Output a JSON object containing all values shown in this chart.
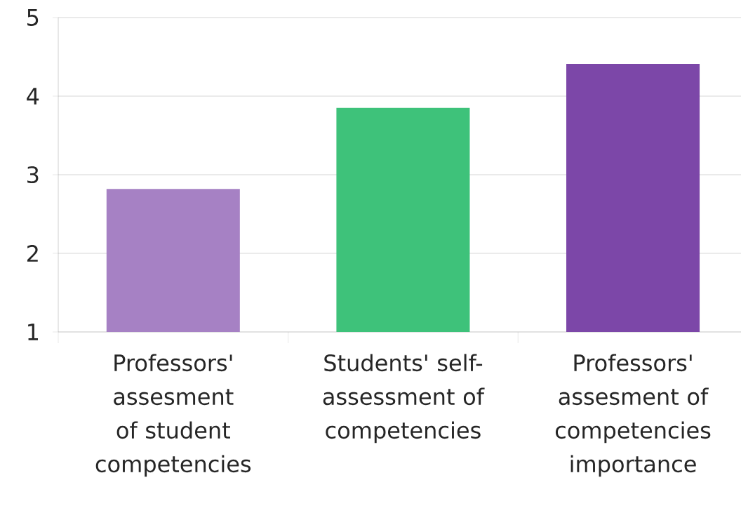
{
  "chart_data": {
    "type": "bar",
    "categories": [
      "Professors' assesment of student competencies",
      "Students' self-assessment of competencies",
      "Professors' assesment of competencies importance"
    ],
    "values": [
      2.82,
      3.85,
      4.41
    ],
    "colors": [
      "#a681c4",
      "#3ec27a",
      "#7c47a8"
    ],
    "ylim": [
      1,
      5
    ],
    "yticks": [
      1,
      2,
      3,
      4,
      5
    ],
    "grid": "y"
  }
}
